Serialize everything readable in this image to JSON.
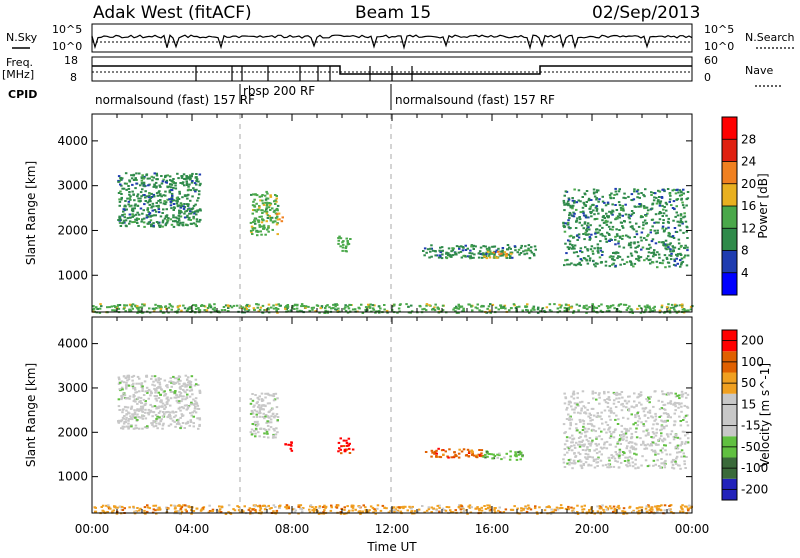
{
  "header": {
    "station": "Adak West (fitACF)",
    "beam": "Beam 15",
    "date": "02/Sep/2013"
  },
  "sidebar_labels": {
    "nsky": "N.Sky",
    "nsearch": "N.Search",
    "freq": "Freq.",
    "freq_unit": "[MHz]",
    "nave": "Nave",
    "cpid": "CPID"
  },
  "noise_panel": {
    "left_ticks": [
      "10^5",
      "10^0"
    ],
    "right_ticks": [
      "10^5",
      "10^0"
    ]
  },
  "freq_panel": {
    "left_ticks": [
      "18",
      "8"
    ],
    "right_ticks": [
      "60",
      "0"
    ]
  },
  "cpid_panel": {
    "segments": [
      "normalsound (fast) 157 RF",
      "rbsp 200 RF",
      "normalsound (fast) 157 RF"
    ]
  },
  "chart_data": [
    {
      "type": "heatmap",
      "name": "power",
      "xlabel": "",
      "ylabel": "Slant Range [km]",
      "ytick_labels": [
        "1000",
        "2000",
        "3000",
        "4000"
      ],
      "xlim": [
        0,
        24
      ],
      "ylim": [
        180,
        4600
      ],
      "colorbar_label": "Power [dB]",
      "colorbar_ticks": [
        "4",
        "8",
        "12",
        "16",
        "20",
        "24",
        "28"
      ],
      "colors": [
        "#0000ff",
        "#1f3cb0",
        "#2f8a4a",
        "#4aa84a",
        "#e8b020",
        "#f08020",
        "#e02010",
        "#ff0000"
      ],
      "regions": [
        {
          "x": [
            1.0,
            4.3
          ],
          "y": [
            2100,
            3300
          ],
          "level": 2
        },
        {
          "x": [
            6.3,
            7.4
          ],
          "y": [
            1900,
            2900
          ],
          "level": 3
        },
        {
          "x": [
            7.3,
            7.6
          ],
          "y": [
            2200,
            2400
          ],
          "level": 5
        },
        {
          "x": [
            9.8,
            10.3
          ],
          "y": [
            1550,
            1900
          ],
          "level": 3
        },
        {
          "x": [
            13.2,
            17.7
          ],
          "y": [
            1400,
            1700
          ],
          "level": 2
        },
        {
          "x": [
            15.5,
            16.8
          ],
          "y": [
            1400,
            1550
          ],
          "level": 4
        },
        {
          "x": [
            18.8,
            23.8
          ],
          "y": [
            1200,
            2950
          ],
          "level": 2
        },
        {
          "x": [
            0.0,
            24.0
          ],
          "y": [
            180,
            380
          ],
          "level": 3
        }
      ]
    },
    {
      "type": "heatmap",
      "name": "velocity",
      "xlabel": "Time UT",
      "ylabel": "Slant Range [km]",
      "ytick_labels": [
        "1000",
        "2000",
        "3000",
        "4000"
      ],
      "xtick_labels": [
        "00:00",
        "04:00",
        "08:00",
        "12:00",
        "16:00",
        "20:00",
        "00:00"
      ],
      "xlim": [
        0,
        24
      ],
      "ylim": [
        180,
        4600
      ],
      "colorbar_label": "Velocity [m s^-1]",
      "colorbar_ticks": [
        "200",
        "100",
        "50",
        "15",
        "-15",
        "-50",
        "-100",
        "-200"
      ],
      "colors": [
        "#2222bb",
        "#3a6a3a",
        "#60c040",
        "#c8c8c8",
        "#c8c8c8",
        "#f0a020",
        "#e06000",
        "#ff0000"
      ],
      "regions": [
        {
          "x": [
            1.0,
            4.3
          ],
          "y": [
            2100,
            3300
          ],
          "level": 3
        },
        {
          "x": [
            6.3,
            7.4
          ],
          "y": [
            1900,
            2900
          ],
          "level": 3
        },
        {
          "x": [
            7.6,
            8.0
          ],
          "y": [
            1600,
            1800
          ],
          "level": 7
        },
        {
          "x": [
            9.8,
            10.4
          ],
          "y": [
            1550,
            1900
          ],
          "level": 7
        },
        {
          "x": [
            13.2,
            15.6
          ],
          "y": [
            1450,
            1650
          ],
          "level": 6
        },
        {
          "x": [
            15.6,
            17.2
          ],
          "y": [
            1400,
            1600
          ],
          "level": 2
        },
        {
          "x": [
            18.8,
            23.8
          ],
          "y": [
            1200,
            2950
          ],
          "level": 3
        },
        {
          "x": [
            0.0,
            24.0
          ],
          "y": [
            180,
            380
          ],
          "level": 5
        }
      ]
    }
  ]
}
